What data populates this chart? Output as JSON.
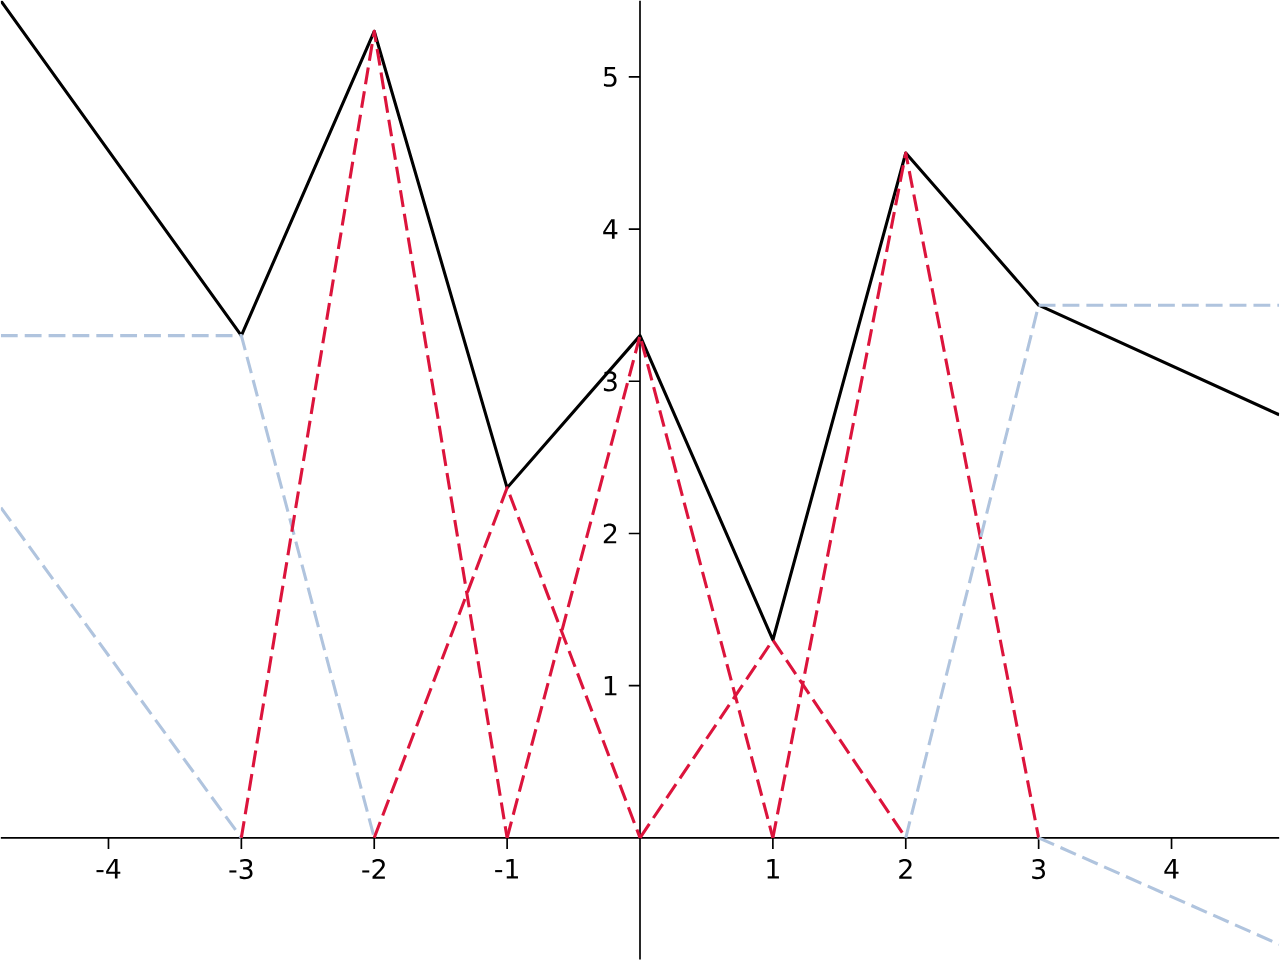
{
  "chart_data": {
    "type": "line",
    "xlim": [
      -4.81,
      4.81
    ],
    "ylim": [
      -0.8,
      5.5
    ],
    "xticks": [
      -4,
      -3,
      -2,
      -1,
      1,
      2,
      3,
      4
    ],
    "yticks": [
      1,
      2,
      3,
      4,
      5
    ],
    "marker": "none",
    "series": [
      {
        "x": [
          -4.81,
          -3,
          -2,
          -1,
          0,
          1,
          2,
          3,
          4.81
        ],
        "values": [
          5.5,
          3.3,
          5.3,
          2.3,
          3.3,
          1.3,
          4.5,
          3.5,
          2.78
        ],
        "color": "#000000",
        "line_style": "solid"
      },
      {
        "x": [
          -4.81,
          -3,
          -2
        ],
        "values": [
          3.3,
          3.3,
          0
        ],
        "color": "#b0c4de",
        "line_style": "dashed"
      },
      {
        "x": [
          -4.81,
          -3
        ],
        "values": [
          2.17,
          0
        ],
        "color": "#b0c4de",
        "line_style": "dashed"
      },
      {
        "x": [
          -3,
          -2,
          -1
        ],
        "values": [
          0,
          5.3,
          0
        ],
        "color": "#dc143c",
        "line_style": "dashed"
      },
      {
        "x": [
          -2,
          -1,
          0
        ],
        "values": [
          0,
          2.3,
          0
        ],
        "color": "#dc143c",
        "line_style": "dashed"
      },
      {
        "x": [
          -1,
          0,
          1
        ],
        "values": [
          0,
          3.3,
          0
        ],
        "color": "#dc143c",
        "line_style": "dashed"
      },
      {
        "x": [
          0,
          1,
          2
        ],
        "values": [
          0,
          1.3,
          0
        ],
        "color": "#dc143c",
        "line_style": "dashed"
      },
      {
        "x": [
          1,
          2,
          3
        ],
        "values": [
          0,
          4.5,
          0
        ],
        "color": "#dc143c",
        "line_style": "dashed"
      },
      {
        "x": [
          2,
          3,
          4.81
        ],
        "values": [
          0,
          3.5,
          3.5
        ],
        "color": "#b0c4de",
        "line_style": "dashed"
      },
      {
        "x": [
          3,
          4.81
        ],
        "values": [
          0,
          -0.7
        ],
        "color": "#b0c4de",
        "line_style": "dashed"
      }
    ]
  }
}
